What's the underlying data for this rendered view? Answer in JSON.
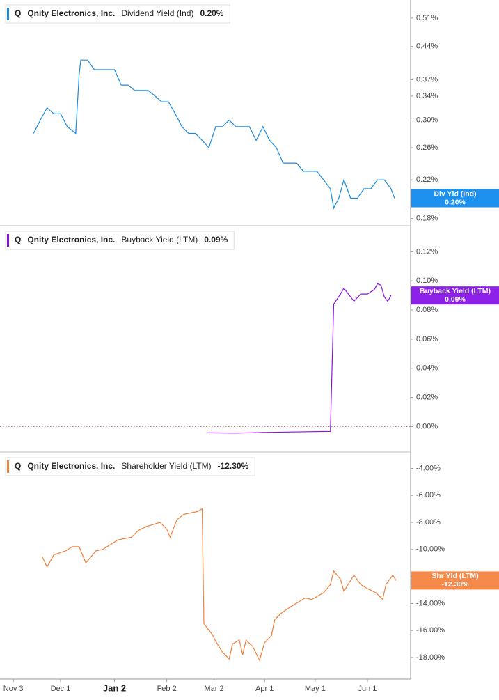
{
  "chart_data": [
    {
      "type": "line",
      "ticker": "Q",
      "company": "Qnity Electronics, Inc.",
      "metric": "Dividend Yield (Ind)",
      "latest": "0.20%",
      "badge": {
        "label": "Div Yld (Ind)",
        "value": "0.20%"
      },
      "color": "#1a8be0",
      "badge_color": "#1e90f0",
      "yscale": "log",
      "ylim": [
        0.174,
        0.55
      ],
      "yticks": [
        {
          "value": 0.51,
          "label": "0.51%"
        },
        {
          "value": 0.44,
          "label": "0.44%"
        },
        {
          "value": 0.37,
          "label": "0.37%"
        },
        {
          "value": 0.34,
          "label": "0.34%"
        },
        {
          "value": 0.3,
          "label": "0.30%"
        },
        {
          "value": 0.26,
          "label": "0.26%"
        },
        {
          "value": 0.22,
          "label": "0.22%"
        },
        {
          "value": 0.18,
          "label": "0.18%"
        }
      ],
      "x": [
        "Nov 15",
        "Nov 19",
        "Nov 23",
        "Nov 27",
        "Dec 1",
        "Dec 5",
        "Dec 10",
        "Dec 12",
        "Dec 13",
        "Dec 17",
        "Dec 21",
        "Dec 25",
        "Dec 29",
        "Jan 2",
        "Jan 6",
        "Jan 10",
        "Jan 14",
        "Jan 18",
        "Jan 22",
        "Jan 26",
        "Jan 30",
        "Feb 3",
        "Feb 7",
        "Feb 11",
        "Feb 15",
        "Feb 19",
        "Feb 23",
        "Feb 27",
        "Mar 3",
        "Mar 7",
        "Mar 11",
        "Mar 15",
        "Mar 19",
        "Mar 23",
        "Mar 27",
        "Mar 31",
        "Apr 4",
        "Apr 8",
        "Apr 12",
        "Apr 16",
        "Apr 20",
        "Apr 24",
        "Apr 28",
        "May 2",
        "May 6",
        "May 10",
        "May 12",
        "May 15",
        "May 18",
        "May 22",
        "May 26",
        "May 30",
        "Jun 3",
        "Jun 7",
        "Jun 11",
        "Jun 15",
        "Jun 17"
      ],
      "values": [
        0.28,
        0.3,
        0.32,
        0.31,
        0.31,
        0.29,
        0.28,
        0.38,
        0.41,
        0.41,
        0.39,
        0.39,
        0.39,
        0.39,
        0.36,
        0.36,
        0.35,
        0.35,
        0.35,
        0.34,
        0.33,
        0.33,
        0.31,
        0.29,
        0.28,
        0.28,
        0.27,
        0.26,
        0.29,
        0.29,
        0.3,
        0.29,
        0.29,
        0.29,
        0.27,
        0.29,
        0.27,
        0.26,
        0.24,
        0.24,
        0.24,
        0.23,
        0.23,
        0.23,
        0.22,
        0.21,
        0.19,
        0.2,
        0.22,
        0.2,
        0.2,
        0.21,
        0.21,
        0.22,
        0.22,
        0.21,
        0.2
      ]
    },
    {
      "type": "line",
      "ticker": "Q",
      "company": "Qnity Electronics, Inc.",
      "metric": "Buyback Yield (LTM)",
      "latest": "0.09%",
      "badge": {
        "label": "Buyback Yield (LTM)",
        "value": "0.09%"
      },
      "color": "#8a12e0",
      "badge_color": "#8c1fe8",
      "zero_line": true,
      "ylim": [
        -0.017,
        0.135
      ],
      "yticks": [
        {
          "value": 0.12,
          "label": "0.12%"
        },
        {
          "value": 0.1,
          "label": "0.10%"
        },
        {
          "value": 0.08,
          "label": "0.08%"
        },
        {
          "value": 0.06,
          "label": "0.06%"
        },
        {
          "value": 0.04,
          "label": "0.04%"
        },
        {
          "value": 0.02,
          "label": "0.02%"
        },
        {
          "value": 0,
          "label": "0.00%"
        }
      ],
      "x": [
        "Feb 26",
        "Mar 15",
        "Apr 1",
        "Apr 17",
        "May 10",
        "May 12",
        "May 16",
        "May 18",
        "May 22",
        "May 24",
        "May 28",
        "Jun 1",
        "Jun 5",
        "Jun 7",
        "Jun 9",
        "Jun 11",
        "Jun 13",
        "Jun 15"
      ],
      "values": [
        -0.0043,
        -0.0045,
        -0.004,
        -0.0037,
        -0.0033,
        0.084,
        0.091,
        0.095,
        0.089,
        0.086,
        0.091,
        0.091,
        0.094,
        0.098,
        0.097,
        0.089,
        0.086,
        0.09
      ]
    },
    {
      "type": "line",
      "ticker": "Q",
      "company": "Qnity Electronics, Inc.",
      "metric": "Shareholder Yield (LTM)",
      "latest": "-12.30%",
      "badge": {
        "label": "Shr Yld (LTM)",
        "value": "-12.30%"
      },
      "color": "#f0803c",
      "badge_color": "#f58a4b",
      "ylim": [
        -19.6,
        -3.1
      ],
      "yticks": [
        {
          "value": -4,
          "label": "-4.00%"
        },
        {
          "value": -6,
          "label": "-6.00%"
        },
        {
          "value": -8,
          "label": "-8.00%"
        },
        {
          "value": -10,
          "label": "-10.00%"
        },
        {
          "value": -12,
          "label": "-12.00%"
        },
        {
          "value": -14,
          "label": "-14.00%"
        },
        {
          "value": -16,
          "label": "-16.00%"
        },
        {
          "value": -18,
          "label": "-18.00%"
        }
      ],
      "x": [
        "Nov 20",
        "Nov 23",
        "Nov 27",
        "Dec 4",
        "Dec 8",
        "Dec 12",
        "Dec 16",
        "Dec 22",
        "Dec 26",
        "Jan 4",
        "Jan 8",
        "Jan 12",
        "Jan 16",
        "Jan 21",
        "Jan 29",
        "Feb 2",
        "Feb 4",
        "Feb 8",
        "Feb 12",
        "Feb 20",
        "Feb 23",
        "Feb 24",
        "Mar 1",
        "Mar 3",
        "Mar 7",
        "Mar 11",
        "Mar 13",
        "Mar 17",
        "Mar 19",
        "Mar 21",
        "Mar 25",
        "Mar 29",
        "Apr 1",
        "Apr 5",
        "Apr 7",
        "Apr 11",
        "Apr 17",
        "Apr 21",
        "Apr 25",
        "Apr 29",
        "May 6",
        "May 10",
        "May 12",
        "May 16",
        "May 18",
        "May 24",
        "May 28",
        "Jun 1",
        "Jun 6",
        "Jun 10",
        "Jun 12",
        "Jun 16",
        "Jun 18"
      ],
      "values": [
        -10.5,
        -11.3,
        -10.4,
        -10.1,
        -9.8,
        -9.8,
        -11.0,
        -10.1,
        -10.0,
        -9.3,
        -9.2,
        -9.1,
        -8.6,
        -8.3,
        -8.0,
        -8.5,
        -9.1,
        -7.8,
        -7.4,
        -7.2,
        -7.0,
        -15.5,
        -16.3,
        -16.8,
        -17.6,
        -18.1,
        -17.0,
        -16.7,
        -17.8,
        -16.7,
        -17.2,
        -18.2,
        -16.9,
        -16.4,
        -15.2,
        -14.7,
        -14.2,
        -13.9,
        -13.6,
        -13.7,
        -13.2,
        -12.6,
        -11.6,
        -12.2,
        -13.1,
        -11.9,
        -12.6,
        -12.9,
        -13.2,
        -13.7,
        -12.6,
        -11.9,
        -12.3
      ],
      "xticks": [
        "Nov 3",
        "Dec 1",
        "Jan 2",
        "Feb 2",
        "Mar 2",
        "Apr 1",
        "May 1",
        "Jun 1"
      ]
    }
  ]
}
